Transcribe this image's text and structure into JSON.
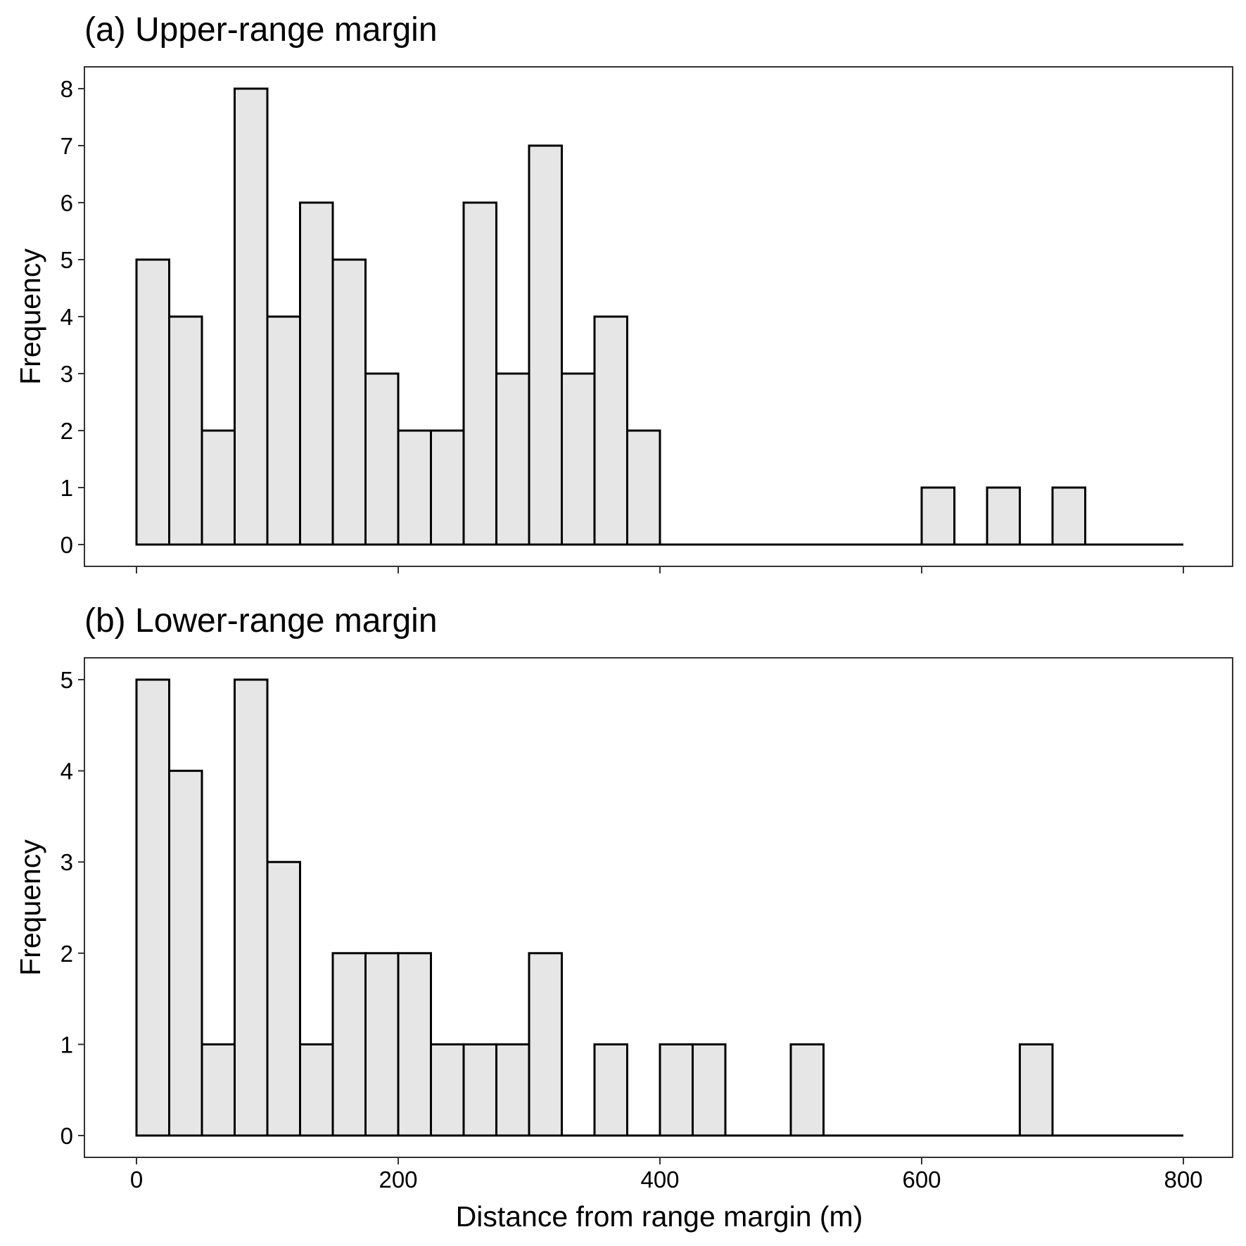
{
  "figure": {
    "xlabel": "Distance from range margin (m)",
    "colors": {
      "bar_fill": "#e6e6e6",
      "bar_stroke": "#000000",
      "axis": "#333333"
    }
  },
  "chart_data": [
    {
      "type": "bar",
      "subtype": "histogram",
      "title": "(a) Upper-range margin",
      "xlabel": "",
      "ylabel": "Frequency",
      "bin_width": 25,
      "x_range": [
        0,
        800
      ],
      "ylim": [
        0,
        8
      ],
      "x_ticks": [
        0,
        200,
        400,
        600,
        800
      ],
      "x_tick_labels_shown": false,
      "y_ticks": [
        0,
        1,
        2,
        3,
        4,
        5,
        6,
        7,
        8
      ],
      "grid": false,
      "bins": [
        {
          "x0": 0,
          "x1": 25,
          "count": 5
        },
        {
          "x0": 25,
          "x1": 50,
          "count": 4
        },
        {
          "x0": 50,
          "x1": 75,
          "count": 2
        },
        {
          "x0": 75,
          "x1": 100,
          "count": 8
        },
        {
          "x0": 100,
          "x1": 125,
          "count": 4
        },
        {
          "x0": 125,
          "x1": 150,
          "count": 6
        },
        {
          "x0": 150,
          "x1": 175,
          "count": 5
        },
        {
          "x0": 175,
          "x1": 200,
          "count": 3
        },
        {
          "x0": 200,
          "x1": 225,
          "count": 2
        },
        {
          "x0": 225,
          "x1": 250,
          "count": 2
        },
        {
          "x0": 250,
          "x1": 275,
          "count": 6
        },
        {
          "x0": 275,
          "x1": 300,
          "count": 3
        },
        {
          "x0": 300,
          "x1": 325,
          "count": 7
        },
        {
          "x0": 325,
          "x1": 350,
          "count": 3
        },
        {
          "x0": 350,
          "x1": 375,
          "count": 4
        },
        {
          "x0": 375,
          "x1": 400,
          "count": 2
        },
        {
          "x0": 600,
          "x1": 625,
          "count": 1
        },
        {
          "x0": 650,
          "x1": 675,
          "count": 1
        },
        {
          "x0": 700,
          "x1": 725,
          "count": 1
        }
      ]
    },
    {
      "type": "bar",
      "subtype": "histogram",
      "title": "(b) Lower-range margin",
      "xlabel": "Distance from range margin (m)",
      "ylabel": "Frequency",
      "bin_width": 25,
      "x_range": [
        0,
        800
      ],
      "ylim": [
        0,
        5
      ],
      "x_ticks": [
        0,
        200,
        400,
        600,
        800
      ],
      "x_tick_labels_shown": true,
      "y_ticks": [
        0,
        1,
        2,
        3,
        4,
        5
      ],
      "grid": false,
      "bins": [
        {
          "x0": 0,
          "x1": 25,
          "count": 5
        },
        {
          "x0": 25,
          "x1": 50,
          "count": 4
        },
        {
          "x0": 50,
          "x1": 75,
          "count": 1
        },
        {
          "x0": 75,
          "x1": 100,
          "count": 5
        },
        {
          "x0": 100,
          "x1": 125,
          "count": 3
        },
        {
          "x0": 125,
          "x1": 150,
          "count": 1
        },
        {
          "x0": 150,
          "x1": 175,
          "count": 2
        },
        {
          "x0": 175,
          "x1": 200,
          "count": 2
        },
        {
          "x0": 200,
          "x1": 225,
          "count": 2
        },
        {
          "x0": 225,
          "x1": 250,
          "count": 1
        },
        {
          "x0": 250,
          "x1": 275,
          "count": 1
        },
        {
          "x0": 275,
          "x1": 300,
          "count": 1
        },
        {
          "x0": 300,
          "x1": 325,
          "count": 2
        },
        {
          "x0": 350,
          "x1": 375,
          "count": 1
        },
        {
          "x0": 400,
          "x1": 425,
          "count": 1
        },
        {
          "x0": 425,
          "x1": 450,
          "count": 1
        },
        {
          "x0": 500,
          "x1": 525,
          "count": 1
        },
        {
          "x0": 675,
          "x1": 700,
          "count": 1
        }
      ]
    }
  ]
}
